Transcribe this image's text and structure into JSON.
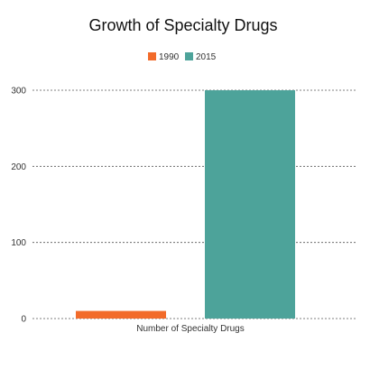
{
  "chart_data": {
    "type": "bar",
    "title": "Growth of Specialty Drugs",
    "categories": [
      "Number of Specialty Drugs"
    ],
    "series": [
      {
        "name": "1990",
        "values": [
          10
        ],
        "color": "#f26b2a"
      },
      {
        "name": "2015",
        "values": [
          300
        ],
        "color": "#4da39a"
      }
    ],
    "xlabel": "",
    "ylabel": "",
    "ylim": [
      0,
      300
    ],
    "yticks": [
      "0",
      "100",
      "200",
      "300"
    ],
    "grid": true,
    "legend_position": "top-center"
  }
}
